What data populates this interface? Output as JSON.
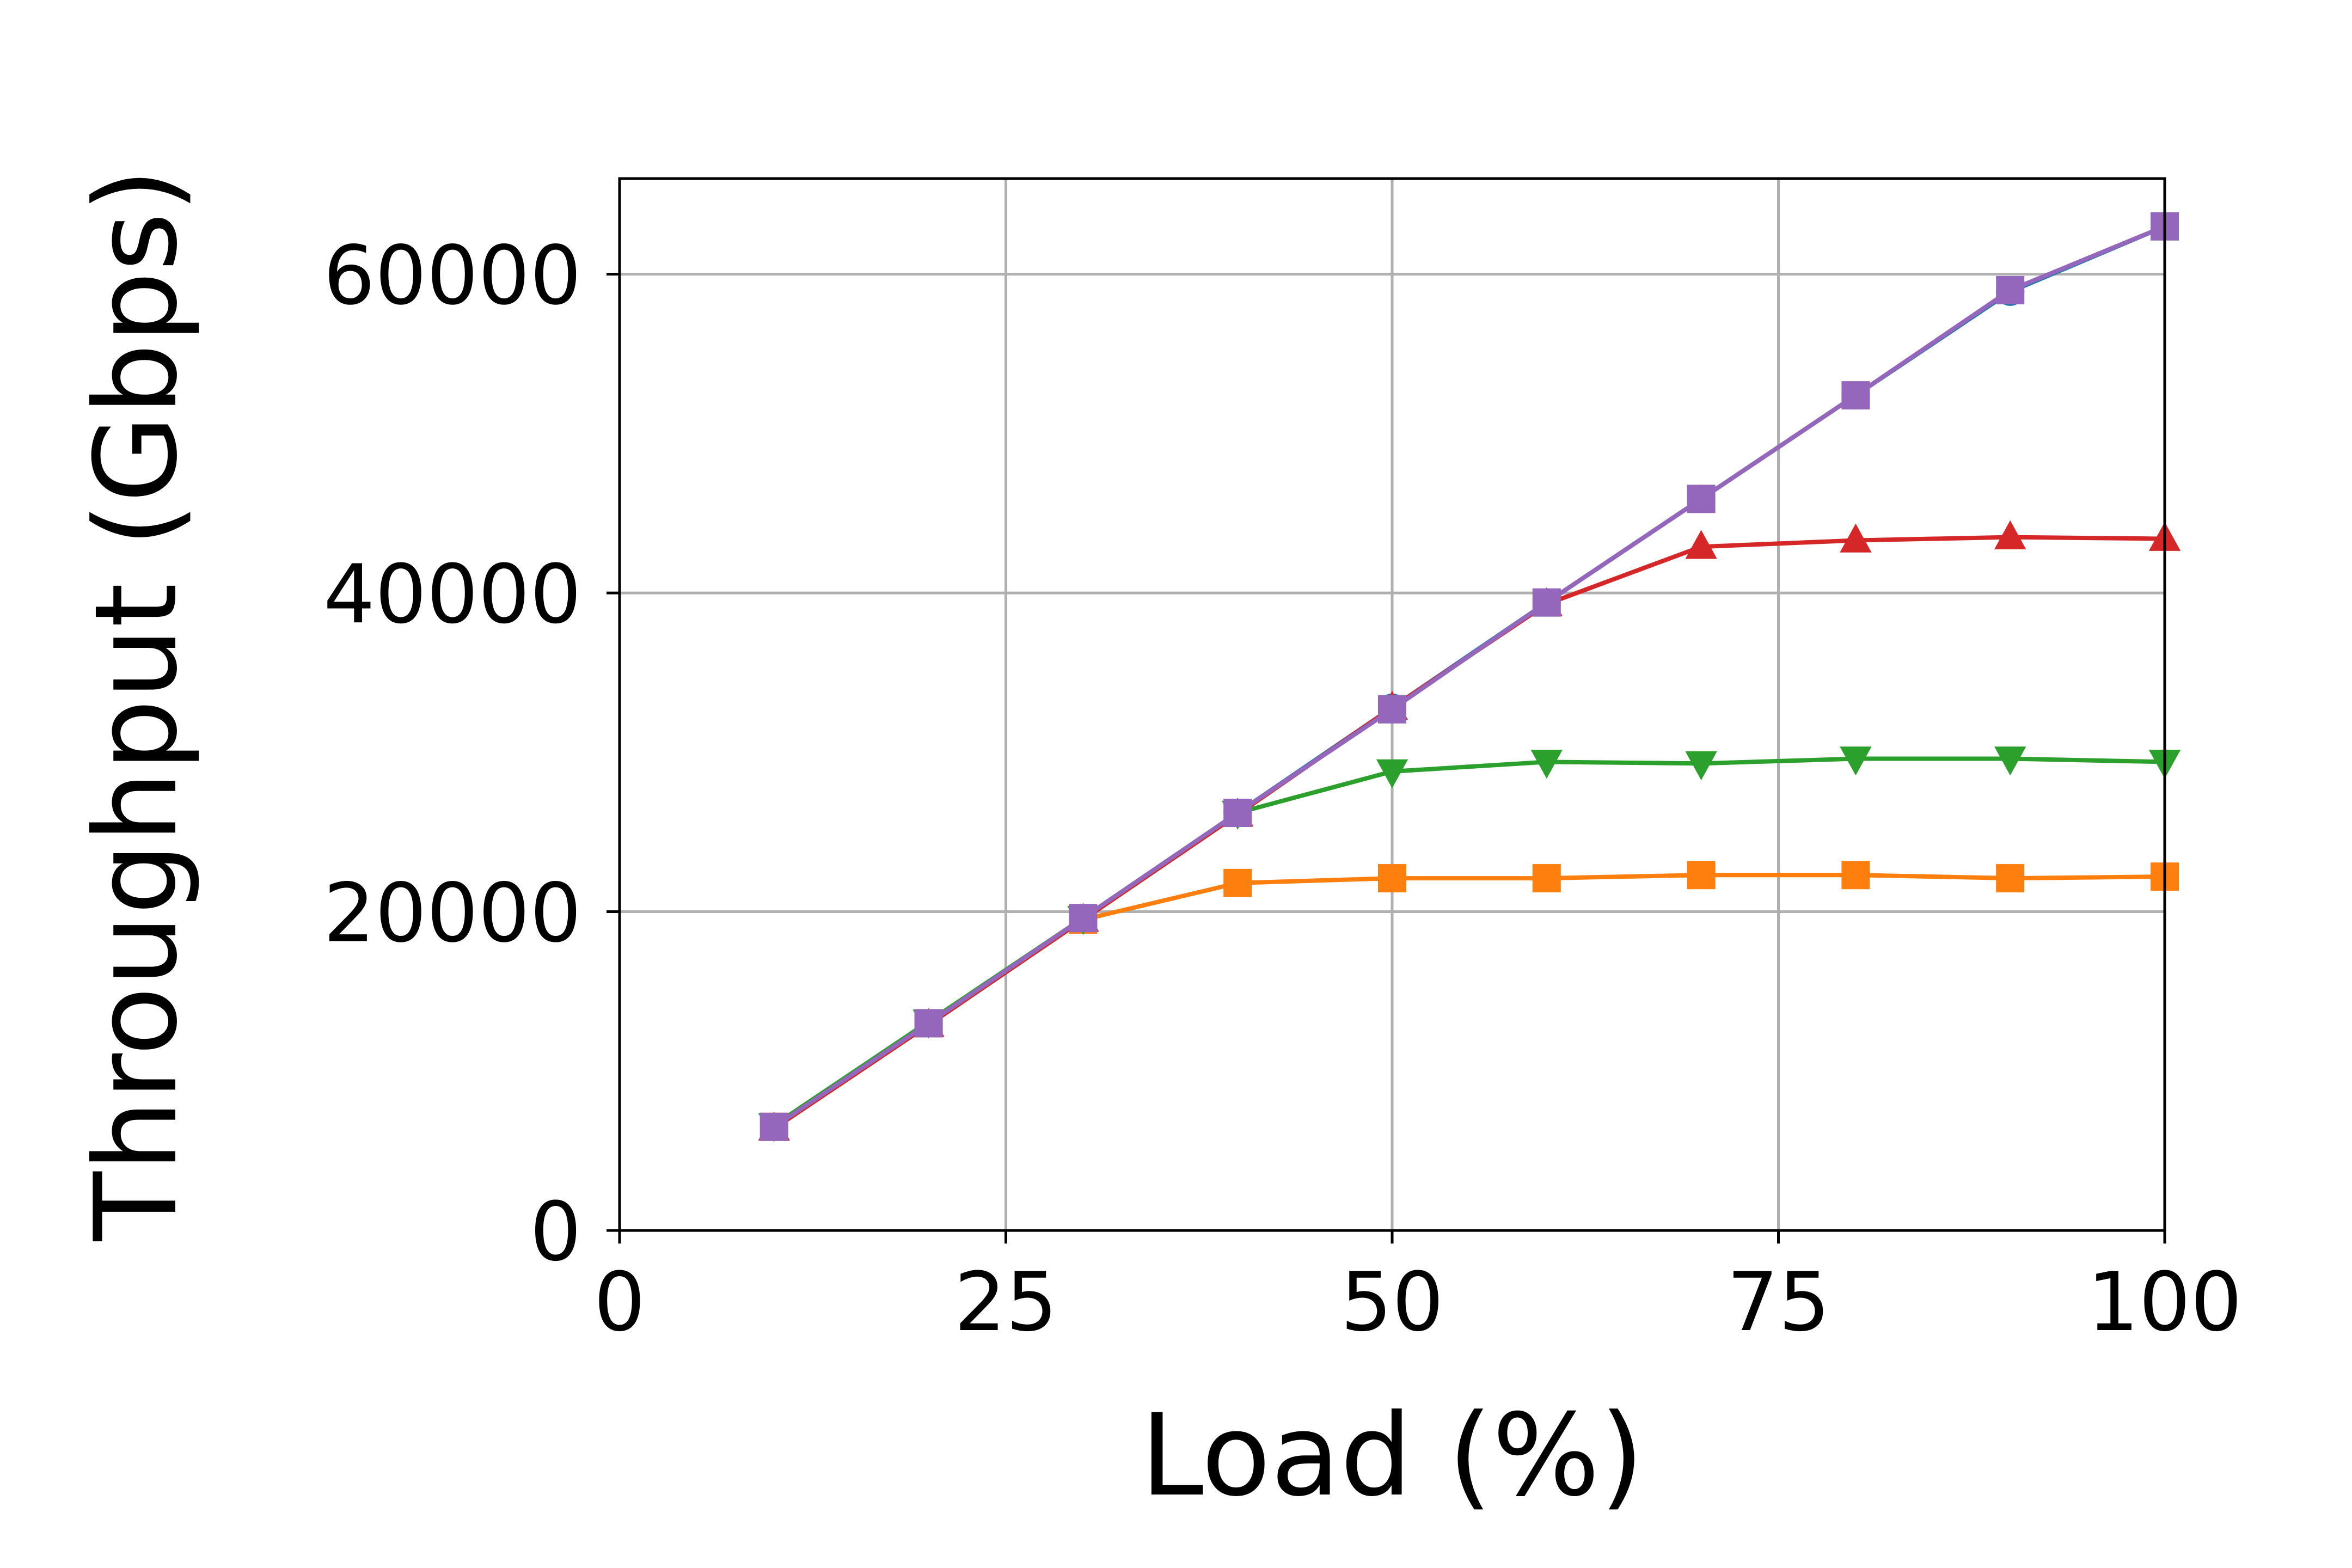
{
  "chart_data": {
    "type": "line",
    "title": "",
    "xlabel": "Load (%)",
    "ylabel": "Throughput (Gbps)",
    "xlim": [
      0,
      100
    ],
    "ylim": [
      0,
      66000
    ],
    "xticks": [
      0,
      25,
      50,
      75,
      100
    ],
    "yticks": [
      0,
      20000,
      40000,
      60000
    ],
    "xtick_labels": [
      "0",
      "25",
      "50",
      "75",
      "100"
    ],
    "ytick_labels": [
      "0",
      "20000",
      "40000",
      "60000"
    ],
    "grid": true,
    "legend": "none",
    "x": [
      10,
      20,
      30,
      40,
      50,
      60,
      70,
      80,
      90,
      100
    ],
    "series": [
      {
        "color": "#1f77b4",
        "marker": "circle",
        "values": [
          6500,
          13000,
          19600,
          26200,
          32800,
          39400,
          45900,
          52400,
          58900,
          63000
        ]
      },
      {
        "color": "#ff7f0e",
        "marker": "square",
        "values": [
          6500,
          13000,
          19500,
          21800,
          22100,
          22100,
          22300,
          22300,
          22100,
          22200
        ]
      },
      {
        "color": "#2ca02c",
        "marker": "triangle-down",
        "values": [
          6600,
          13100,
          19600,
          26200,
          28800,
          29400,
          29300,
          29600,
          29600,
          29400
        ]
      },
      {
        "color": "#d62728",
        "marker": "triangle-up",
        "values": [
          6400,
          12900,
          19500,
          26100,
          32800,
          39300,
          42900,
          43300,
          43500,
          43400
        ]
      },
      {
        "color": "#9467bd",
        "marker": "square",
        "values": [
          6500,
          13000,
          19600,
          26200,
          32700,
          39400,
          45900,
          52400,
          59000,
          63000
        ]
      }
    ]
  }
}
